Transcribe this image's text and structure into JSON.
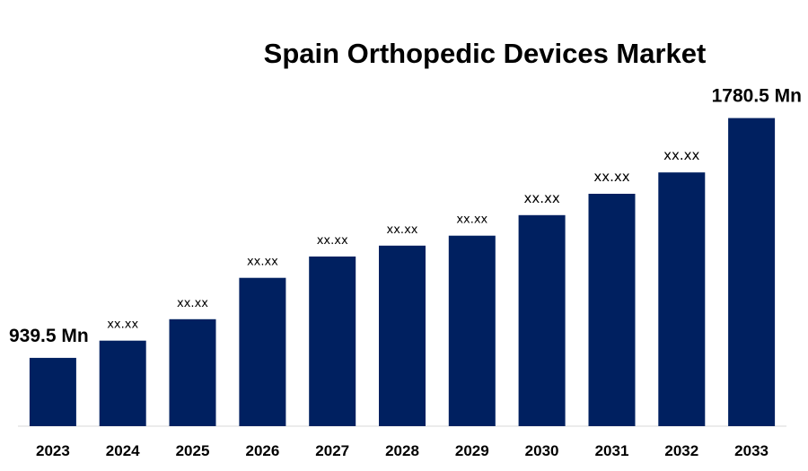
{
  "chart_data": {
    "type": "bar",
    "title": "Spain Orthopedic Devices Market",
    "xlabel": "",
    "ylabel": "",
    "categories": [
      "2023",
      "2024",
      "2025",
      "2026",
      "2027",
      "2028",
      "2029",
      "2030",
      "2031",
      "2032",
      "2033"
    ],
    "values": [
      939.5,
      1000,
      1075,
      1220,
      1295,
      1333,
      1368,
      1440,
      1515,
      1590,
      1780.5
    ],
    "data_labels": [
      "939.5 Mn",
      "xx.xx",
      "xx.xx",
      "xx.xx",
      "xx.xx",
      "xx.xx",
      "xx.xx",
      "xx.xx",
      "xx.xx",
      "xx.xx",
      "1780.5  Mn"
    ],
    "ylim": [
      700,
      1880
    ],
    "bar_color": "#002060",
    "grid": false,
    "legend": "none"
  }
}
